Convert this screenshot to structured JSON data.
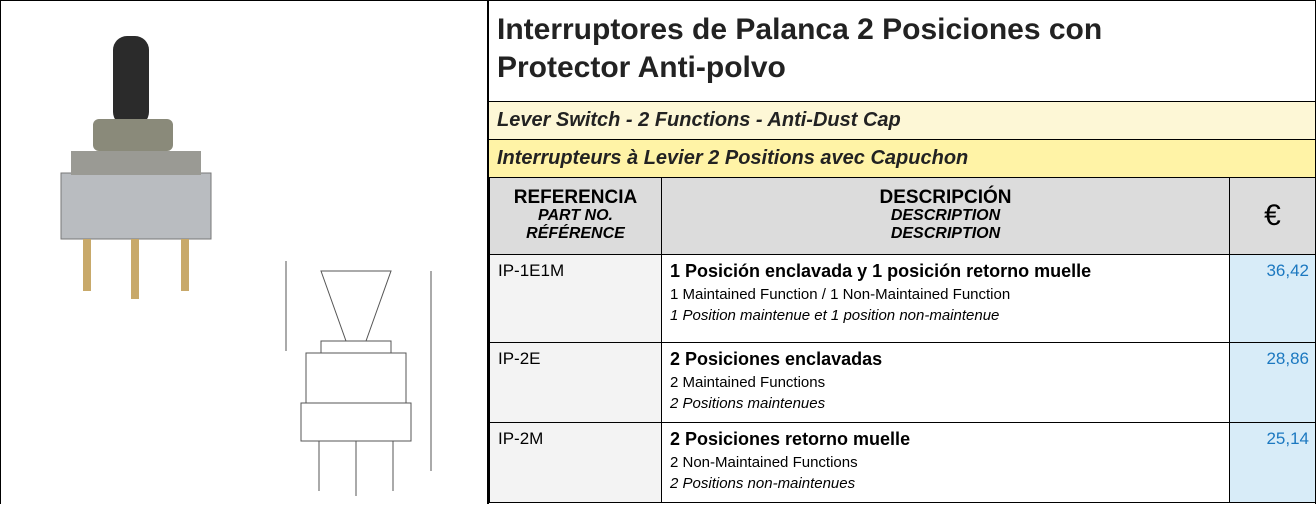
{
  "header": {
    "title": "Interruptores de Palanca 2 Posiciones con Protector Anti-polvo",
    "subtitle_en": "Lever Switch - 2 Functions - Anti-Dust Cap",
    "subtitle_fr": "Interrupteurs à Levier 2 Positions avec Capuchon"
  },
  "table": {
    "columns": [
      {
        "es": "REFERENCIA",
        "en": "PART NO.",
        "fr": "RÉFÉRENCE"
      },
      {
        "es": "DESCRIPCIÓN",
        "en": "DESCRIPTION",
        "fr": "DESCRIPTION"
      },
      {
        "label": "€"
      }
    ],
    "rows": [
      {
        "ref": "IP-1E1M",
        "es": "1 Posición enclavada y 1 posición retorno muelle",
        "en": "1 Maintained Function / 1 Non-Maintained Function",
        "fr": "1 Position maintenue et 1 position non-maintenue",
        "price": "36,42"
      },
      {
        "ref": "IP-2E",
        "es": "2 Posiciones enclavadas",
        "en": "2 Maintained Functions",
        "fr": "2 Positions maintenues",
        "price": "28,86"
      },
      {
        "ref": "IP-2M",
        "es": "2 Posiciones retorno muelle",
        "en": "2 Non-Maintained Functions",
        "fr": "2 Positions non-maintenues",
        "price": "25,14"
      }
    ]
  }
}
